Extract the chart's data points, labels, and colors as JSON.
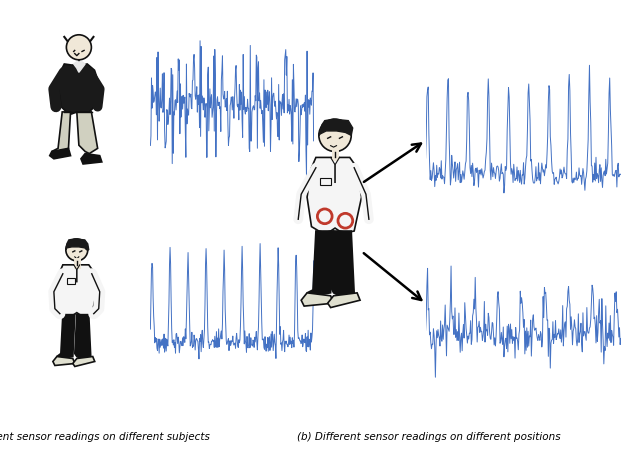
{
  "title_left": "(a) Different sensor readings on different subjects",
  "title_right": "(b) Different sensor readings on different positions",
  "bg_color": "#ffffff",
  "signal_color": "#4472C4",
  "signal_color2": "#c0392b",
  "figsize": [
    6.4,
    4.53
  ],
  "dpi": 100,
  "caption_fontsize": 7.5,
  "lw_signal": 0.7
}
